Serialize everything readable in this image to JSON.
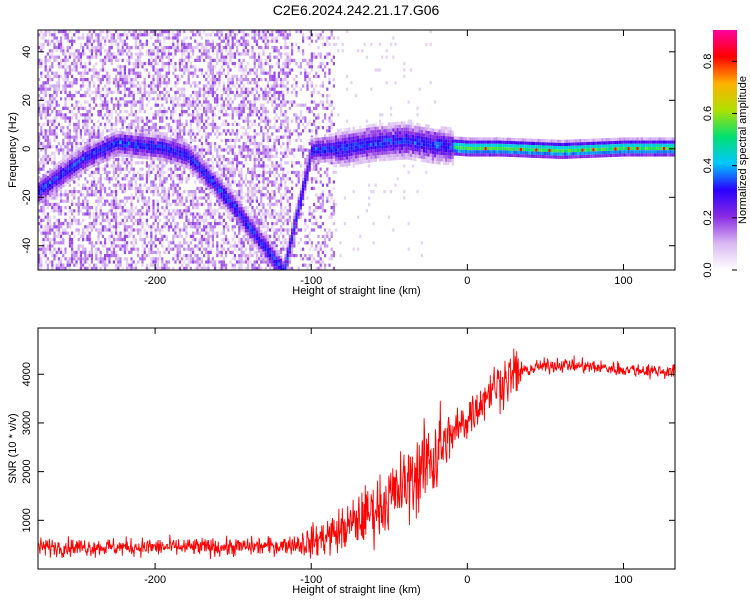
{
  "title": "C2E6.2024.242.21.17.G06",
  "chart_data": [
    {
      "type": "heatmap",
      "xlabel": "Height of straight line (km)",
      "ylabel": "Frequency (Hz)",
      "xlim": [
        -275,
        133
      ],
      "ylim": [
        -50,
        49
      ],
      "xticks": [
        -200,
        -100,
        0,
        100
      ],
      "yticks": [
        -40,
        -20,
        0,
        20,
        40
      ],
      "colorbar": {
        "label": "Normalized spectral amplitude",
        "range": [
          0,
          0.92
        ],
        "ticks": [
          0.0,
          0.2,
          0.4,
          0.6,
          0.8
        ],
        "colormap": [
          "#ffffff",
          "#d9b8f2",
          "#8a2be2",
          "#2a00ff",
          "#00c8ff",
          "#00e070",
          "#b0e000",
          "#ffb000",
          "#ff0000",
          "#ff00a0"
        ]
      },
      "ridge": {
        "x": [
          -275,
          -260,
          -245,
          -225,
          -210,
          -195,
          -180,
          -165,
          -150,
          -140,
          -130,
          -122,
          -118,
          -100,
          -80,
          -60,
          -40,
          -20,
          0,
          20,
          60,
          100,
          133
        ],
        "y": [
          -17,
          -10,
          -3,
          3,
          2,
          1,
          -2,
          -12,
          -23,
          -32,
          -40,
          -47,
          -50,
          0,
          1,
          3,
          4,
          2,
          1,
          1,
          0,
          1,
          1
        ]
      }
    },
    {
      "type": "line",
      "xlabel": "Height of straight line (km)",
      "ylabel": "SNR (10 * v/v)",
      "xlim": [
        -275,
        133
      ],
      "ylim": [
        0,
        4950
      ],
      "xticks": [
        -200,
        -100,
        0,
        100
      ],
      "yticks": [
        1000,
        2000,
        3000,
        4000
      ],
      "color": "#ff0000",
      "trend": {
        "x": [
          -275,
          -200,
          -150,
          -120,
          -100,
          -80,
          -60,
          -40,
          -25,
          -15,
          -5,
          5,
          15,
          30,
          45,
          60,
          80,
          100,
          133
        ],
        "y": [
          450,
          450,
          450,
          480,
          550,
          800,
          1200,
          1700,
          2200,
          2600,
          2900,
          3300,
          3700,
          4000,
          4150,
          4200,
          4150,
          4100,
          4050
        ]
      }
    }
  ]
}
